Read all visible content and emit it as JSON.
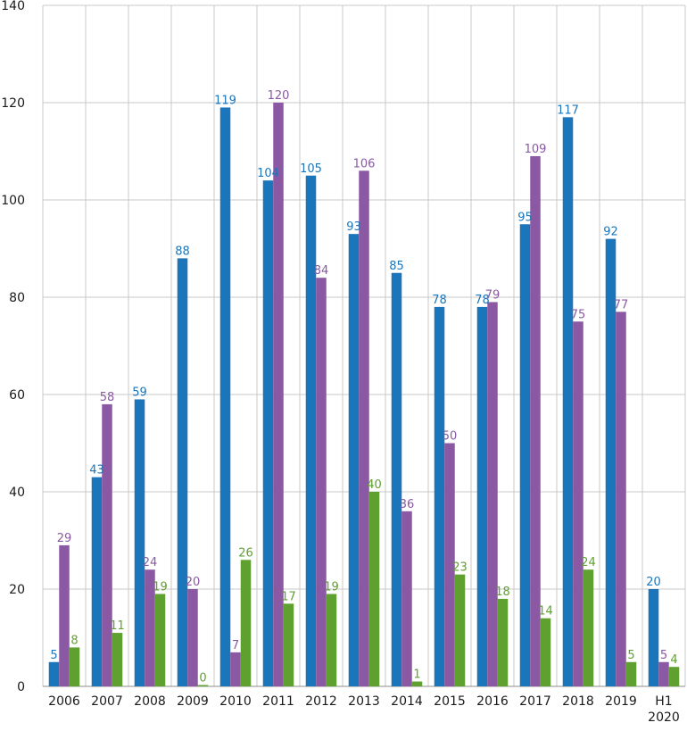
{
  "chart_data": {
    "type": "bar",
    "title": "",
    "xlabel": "",
    "ylabel": "",
    "ylim": [
      0,
      140
    ],
    "yticks": [
      0,
      20,
      40,
      60,
      80,
      100,
      120,
      140
    ],
    "grid": {
      "horizontal": true,
      "vertical": true
    },
    "categories": [
      [
        "2006"
      ],
      [
        "2007"
      ],
      [
        "2008"
      ],
      [
        "2009"
      ],
      [
        "2010"
      ],
      [
        "2011"
      ],
      [
        "2012"
      ],
      [
        "2013"
      ],
      [
        "2014"
      ],
      [
        "2015"
      ],
      [
        "2016"
      ],
      [
        "2017"
      ],
      [
        "2018"
      ],
      [
        "2019"
      ],
      [
        "H1",
        "2020"
      ]
    ],
    "series": [
      {
        "color": "#1b75bb",
        "values": [
          5,
          43,
          59,
          88,
          119,
          104,
          105,
          93,
          85,
          78,
          78,
          95,
          117,
          92,
          20
        ]
      },
      {
        "color": "#8b59a3",
        "values": [
          29,
          58,
          24,
          20,
          7,
          120,
          84,
          106,
          36,
          50,
          79,
          109,
          75,
          77,
          5
        ]
      },
      {
        "color": "#5fa130",
        "values": [
          8,
          11,
          19,
          0,
          26,
          17,
          19,
          40,
          1,
          23,
          18,
          14,
          24,
          5,
          4
        ]
      }
    ]
  }
}
